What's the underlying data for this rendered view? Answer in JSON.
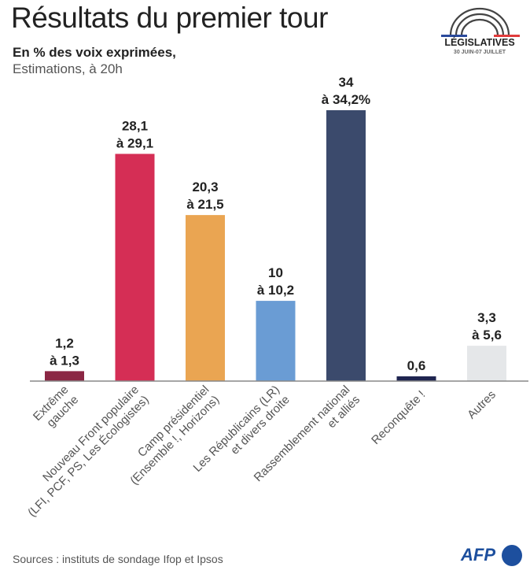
{
  "header": {
    "title": "Résultats du premier tour",
    "subtitle": "En % des voix exprimées,",
    "subtitle2": "Estimations, à 20h"
  },
  "logo": {
    "title": "LÉGISLATIVES",
    "dates": "30 JUIN-07 JUILLET",
    "colors": [
      "#2a4a9c",
      "#e03b3b"
    ]
  },
  "footer": {
    "source": "Sources : instituts de sondage Ifop et Ipsos",
    "brand": "AFP"
  },
  "chart_data": {
    "type": "bar",
    "title": "Résultats du premier tour",
    "categories": [
      [
        "Extrême",
        "gauche"
      ],
      [
        "Nouveau Front populaire",
        "(LFI, PCF, PS, Les Écologistes)"
      ],
      [
        "Camp présidentiel",
        "(Ensemble !, Horizons)"
      ],
      [
        "Les Républicains (LR)",
        "et divers droite"
      ],
      [
        "Rassemblement national",
        "et alliés"
      ],
      [
        "Reconquête !"
      ],
      [
        "Autres"
      ]
    ],
    "low": [
      1.2,
      28.1,
      20.3,
      10,
      34,
      0.6,
      3.3
    ],
    "high": [
      1.3,
      29.1,
      21.5,
      10.2,
      34.2,
      0.6,
      5.6
    ],
    "data_labels": [
      [
        "1,2",
        "à 1,3"
      ],
      [
        "28,1",
        "à 29,1"
      ],
      [
        "20,3",
        "à 21,5"
      ],
      [
        "10",
        "à 10,2"
      ],
      [
        "34",
        "à 34,2%"
      ],
      [
        "0,6"
      ],
      [
        "3,3",
        "à 5,6"
      ]
    ],
    "colors": [
      "#8b2744",
      "#d52e55",
      "#eaa552",
      "#6a9cd4",
      "#3b4a6c",
      "#1f2550",
      "#e5e7e9"
    ],
    "unit": "%",
    "grid": false,
    "legend": "none"
  }
}
